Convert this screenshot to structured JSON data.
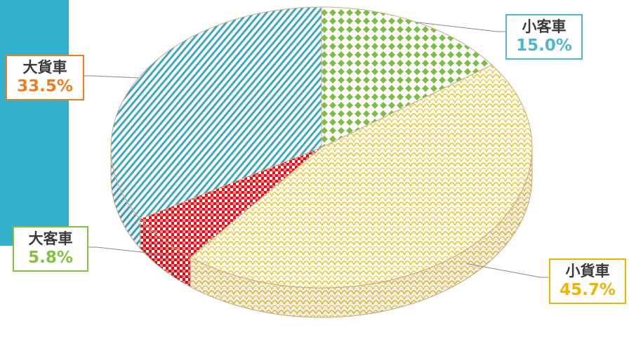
{
  "colors": {
    "band": "#32b0cc",
    "edge": "#c9ad86"
  },
  "chart_data": {
    "type": "pie",
    "title": "",
    "style": "3d-pie-patterned",
    "slices": [
      {
        "label": "小客車",
        "percent_label": "15.0%",
        "value": 15.0,
        "color": "#7dbf45",
        "border_color": "#4fb6cf",
        "pattern": "diamond-checker",
        "icon": "small-passenger-car"
      },
      {
        "label": "小貨車",
        "percent_label": "45.7%",
        "value": 45.7,
        "color": "#e8c02a",
        "border_color": "#f0b400",
        "pattern": "scale",
        "icon": "small-truck"
      },
      {
        "label": "大客車",
        "percent_label": "5.8%",
        "value": 5.8,
        "color": "#e0121b",
        "border_color": "#86c043",
        "pattern": "checker",
        "icon": "bus"
      },
      {
        "label": "大貨車",
        "percent_label": "33.5%",
        "value": 33.5,
        "color": "#3fa7c5",
        "border_color": "#ee7d1f",
        "pattern": "diagonal-stripe",
        "icon": "large-truck"
      }
    ]
  }
}
